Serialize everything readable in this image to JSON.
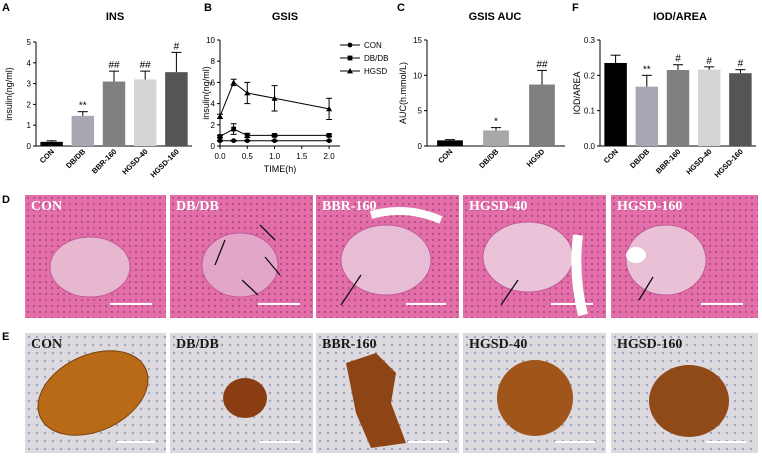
{
  "panels": {
    "A": "A",
    "B": "B",
    "C": "C",
    "D": "D",
    "E": "E",
    "F": "F"
  },
  "chart_data": [
    {
      "id": "A",
      "type": "bar",
      "title": "INS",
      "ylabel": "insulin(ng/ml)",
      "ylim": [
        0,
        5
      ],
      "yticks": [
        0,
        1,
        2,
        3,
        4,
        5
      ],
      "categories": [
        "CON",
        "DB/DB",
        "BBR-160",
        "HGSD-40",
        "HGSD-160"
      ],
      "values": [
        0.2,
        1.45,
        3.1,
        3.2,
        3.55
      ],
      "errors": [
        0.05,
        0.2,
        0.5,
        0.4,
        0.95
      ],
      "annotations": [
        "",
        "**",
        "##",
        "##",
        "#"
      ],
      "colors": [
        "#000000",
        "#a8a8b4",
        "#808080",
        "#d4d4d4",
        "#555555"
      ]
    },
    {
      "id": "B",
      "type": "line",
      "title": "GSIS",
      "xlabel": "TIME(h)",
      "ylabel": "insulin(ng/ml)",
      "xlim": [
        0,
        2.2
      ],
      "ylim": [
        0,
        10
      ],
      "xticks": [
        "0.0",
        "0.5",
        "1.0",
        "1.5",
        "2.0"
      ],
      "yticks": [
        0,
        2,
        4,
        6,
        8,
        10
      ],
      "x": [
        0,
        0.25,
        0.5,
        1.0,
        2.0
      ],
      "series": [
        {
          "name": "CON",
          "marker": "circle",
          "values": [
            0.5,
            0.5,
            0.5,
            0.5,
            0.5
          ],
          "errors": [
            0.05,
            0.05,
            0.05,
            0.05,
            0.05
          ]
        },
        {
          "name": "DB/DB",
          "marker": "square",
          "values": [
            0.9,
            1.6,
            1.0,
            1.0,
            1.0
          ],
          "errors": [
            0.1,
            0.5,
            0.2,
            0.1,
            0.1
          ]
        },
        {
          "name": "HGSD",
          "marker": "triangle",
          "values": [
            2.8,
            6.0,
            5.0,
            4.5,
            3.5
          ],
          "errors": [
            0.2,
            0.3,
            1.0,
            1.2,
            1.0
          ]
        }
      ]
    },
    {
      "id": "C",
      "type": "bar",
      "title": "GSIS AUC",
      "ylabel": "AUC(h.mmol/L)",
      "ylim": [
        0,
        15
      ],
      "yticks": [
        0,
        5,
        10,
        15
      ],
      "categories": [
        "CON",
        "DB/DB",
        "HGSD"
      ],
      "values": [
        0.8,
        2.2,
        8.7
      ],
      "errors": [
        0.1,
        0.4,
        2.0
      ],
      "annotations": [
        "",
        "*",
        "##"
      ],
      "colors": [
        "#000000",
        "#a8a8a8",
        "#808080"
      ]
    },
    {
      "id": "F",
      "type": "bar",
      "title": "IOD/AREA",
      "ylabel": "IOD/AREA",
      "ylim": [
        0,
        0.3
      ],
      "yticks": [
        "0.0",
        "0.1",
        "0.2",
        "0.3"
      ],
      "categories": [
        "CON",
        "DB/DB",
        "BBR-160",
        "HGSD-40",
        "HGSD-160"
      ],
      "values": [
        0.235,
        0.168,
        0.215,
        0.216,
        0.206
      ],
      "errors": [
        0.022,
        0.032,
        0.015,
        0.008,
        0.01
      ],
      "annotations": [
        "",
        "**",
        "#",
        "#",
        "#"
      ],
      "colors": [
        "#000000",
        "#a8a8b4",
        "#808080",
        "#d4d4d4",
        "#555555"
      ]
    }
  ],
  "histology_he": [
    "CON",
    "DB/DB",
    "BBR-160",
    "HGSD-40",
    "HGSD-160"
  ],
  "histology_ihc": [
    "CON",
    "DB/DB",
    "BBR-160",
    "HGSD-40",
    "HGSD-160"
  ]
}
